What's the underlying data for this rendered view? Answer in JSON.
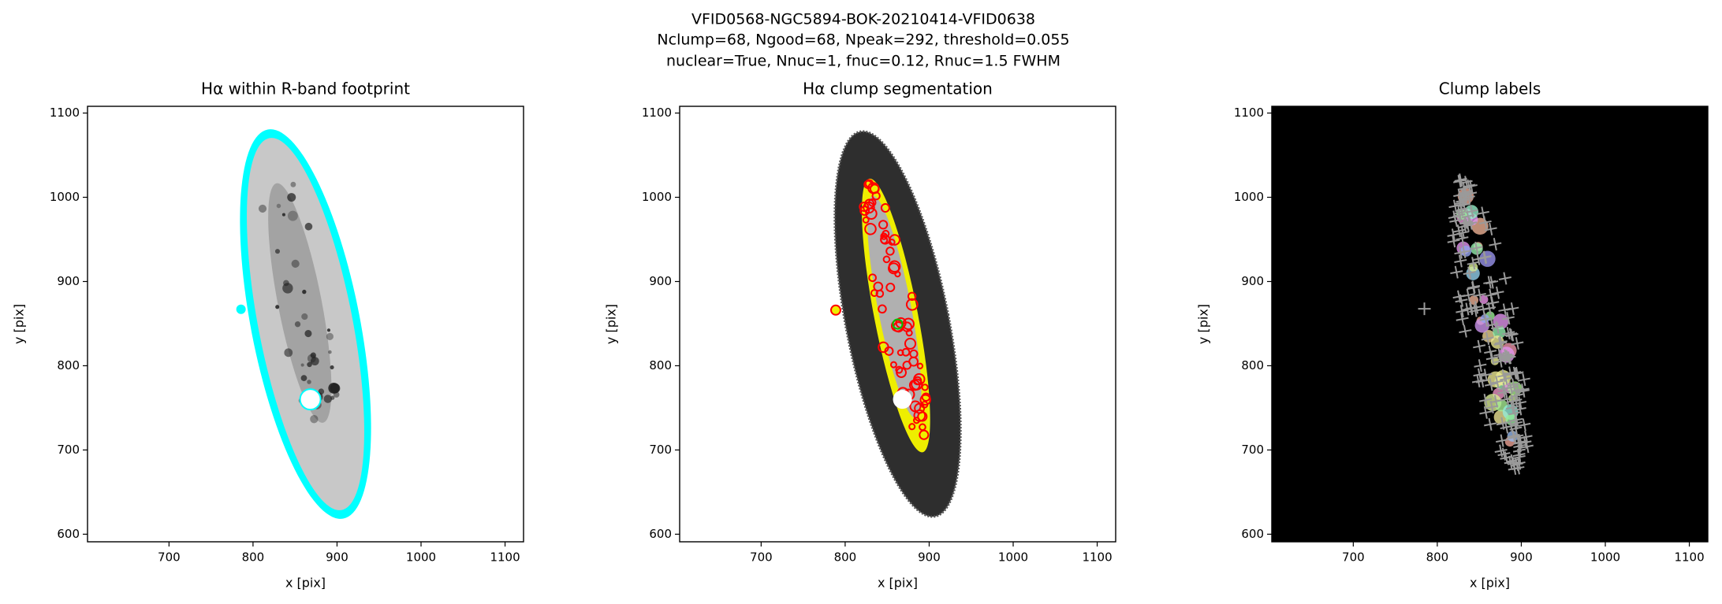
{
  "suptitle": [
    "VFID0568-NGC5894-BOK-20210414-VFID0638",
    "Nclump=68, Ngood=68, Npeak=292, threshold=0.055",
    "nuclear=True, Nnuc=1, fnuc=0.12, Rnuc=1.5 FWHM"
  ],
  "chart_data": [
    {
      "type": "image",
      "title": "Hα within R-band footprint",
      "xlabel": "x [pix]",
      "ylabel": "y [pix]",
      "xlim": [
        603,
        1122
      ],
      "ylim": [
        591,
        1108
      ],
      "xticks": [
        700,
        800,
        900,
        1000,
        1100
      ],
      "yticks": [
        600,
        700,
        800,
        900,
        1000,
        1100
      ]
    },
    {
      "type": "image",
      "title": "Hα clump segmentation",
      "xlabel": "x [pix]",
      "ylabel": "y [pix]",
      "xlim": [
        603,
        1122
      ],
      "ylim": [
        591,
        1108
      ],
      "xticks": [
        700,
        800,
        900,
        1000,
        1100
      ],
      "yticks": [
        600,
        700,
        800,
        900,
        1000,
        1100
      ]
    },
    {
      "type": "image",
      "title": "Clump labels",
      "xlabel": "x [pix]",
      "ylabel": "y [pix]",
      "xlim": [
        603,
        1122
      ],
      "ylim": [
        591,
        1108
      ],
      "xticks": [
        700,
        800,
        900,
        1000,
        1100
      ],
      "yticks": [
        600,
        700,
        800,
        900,
        1000,
        1100
      ]
    }
  ]
}
